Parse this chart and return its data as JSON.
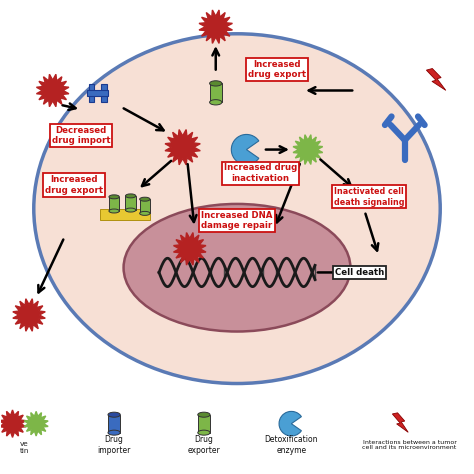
{
  "bg_color": "#ffffff",
  "cell_outer_color": "#f7e0d5",
  "cell_border_color": "#5a7ab5",
  "nucleus_color": "#c8909a",
  "nucleus_border_color": "#8b4a5a",
  "label_border_color": "#cc1111",
  "label_text_color": "#cc1111",
  "labels": {
    "increased_drug_export_top": "Increased\ndrug export",
    "decreased_drug_import": "Decreased\ndrug import",
    "increased_drug_export_left": "Increased\ndrug export",
    "increased_drug_inactivation": "Increased drug\ninactivation",
    "increased_dna_repair": "Increased DNA\ndamage repair",
    "inactivated_cell_death": "Inactivated cell\ndeath signaling",
    "cell_death": "Cell death"
  },
  "legend_labels": [
    "Drug\nimporter",
    "Drug\nexporter",
    "Detoxification\nenzyme",
    "Interactions between a tumor\ncell and its microenvironment"
  ],
  "fig_width": 4.74,
  "fig_height": 4.74,
  "dpi": 100
}
